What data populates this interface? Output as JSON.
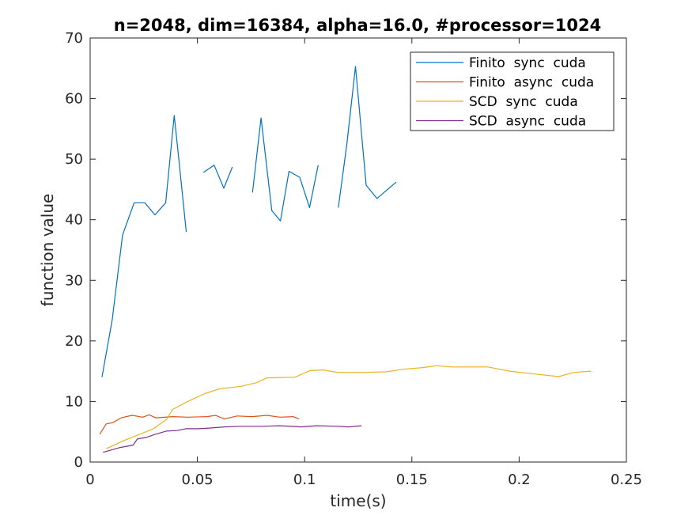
{
  "chart_data": {
    "type": "line",
    "title": "n=2048, dim=16384, alpha=16.0, #processor=1024",
    "xlabel": "time(s)",
    "ylabel": "function value",
    "xlim": [
      0,
      0.25
    ],
    "ylim": [
      0,
      70
    ],
    "xticks": [
      0,
      0.05,
      0.1,
      0.15,
      0.2,
      0.25
    ],
    "xtick_labels": [
      "0",
      "0.05",
      "0.1",
      "0.15",
      "0.2",
      "0.25"
    ],
    "yticks": [
      0,
      10,
      20,
      30,
      40,
      50,
      60,
      70
    ],
    "ytick_labels": [
      "0",
      "10",
      "20",
      "30",
      "40",
      "50",
      "60",
      "70"
    ],
    "grid": false,
    "legend_position": "top-right",
    "series": [
      {
        "name": "Finito  sync  cuda",
        "color": "#0072bd",
        "segments": [
          [
            [
              0.0055,
              14.0
            ],
            [
              0.0103,
              23.5
            ],
            [
              0.0151,
              37.5
            ],
            [
              0.0205,
              42.8
            ],
            [
              0.0255,
              42.8
            ],
            [
              0.0302,
              40.8
            ],
            [
              0.0352,
              42.8
            ],
            [
              0.0392,
              57.2
            ],
            [
              0.0412,
              50.5
            ],
            [
              0.0448,
              38.0
            ]
          ],
          [
            [
              0.0528,
              47.8
            ],
            [
              0.0578,
              49.0
            ],
            [
              0.0623,
              45.2
            ],
            [
              0.0663,
              48.7
            ]
          ],
          [
            [
              0.0757,
              44.5
            ],
            [
              0.0797,
              56.8
            ],
            [
              0.0847,
              41.5
            ],
            [
              0.0887,
              39.8
            ],
            [
              0.0927,
              48.0
            ],
            [
              0.0977,
              47.0
            ],
            [
              0.1023,
              42.0
            ],
            [
              0.1063,
              49.0
            ]
          ],
          [
            [
              0.1157,
              42.0
            ],
            [
              0.1197,
              52.5
            ],
            [
              0.1237,
              65.3
            ],
            [
              0.1287,
              45.7
            ],
            [
              0.1337,
              43.5
            ],
            [
              0.1427,
              46.2
            ]
          ]
        ]
      },
      {
        "name": "Finito  async  cuda",
        "color": "#d95319",
        "segments": [
          [
            [
              0.0045,
              4.6
            ],
            [
              0.0075,
              6.3
            ],
            [
              0.0105,
              6.5
            ],
            [
              0.0145,
              7.3
            ],
            [
              0.0195,
              7.7
            ],
            [
              0.0245,
              7.4
            ],
            [
              0.0275,
              7.8
            ],
            [
              0.0305,
              7.3
            ],
            [
              0.0385,
              7.5
            ],
            [
              0.0455,
              7.4
            ],
            [
              0.0545,
              7.5
            ],
            [
              0.0585,
              7.7
            ],
            [
              0.0625,
              7.1
            ],
            [
              0.0685,
              7.6
            ],
            [
              0.0755,
              7.5
            ],
            [
              0.0825,
              7.7
            ],
            [
              0.0885,
              7.4
            ],
            [
              0.0945,
              7.5
            ],
            [
              0.0975,
              7.1
            ]
          ]
        ]
      },
      {
        "name": "SCD  sync  cuda",
        "color": "#edb120",
        "segments": [
          [
            [
              0.0075,
              2.2
            ],
            [
              0.0155,
              3.5
            ],
            [
              0.0225,
              4.5
            ],
            [
              0.0295,
              5.5
            ],
            [
              0.0355,
              7.0
            ],
            [
              0.0385,
              8.7
            ],
            [
              0.0455,
              10.0
            ],
            [
              0.0535,
              11.3
            ],
            [
              0.0605,
              12.1
            ],
            [
              0.0705,
              12.5
            ],
            [
              0.0775,
              13.1
            ],
            [
              0.0825,
              13.9
            ],
            [
              0.0955,
              14.0
            ],
            [
              0.1025,
              15.1
            ],
            [
              0.1085,
              15.2
            ],
            [
              0.1155,
              14.8
            ],
            [
              0.1285,
              14.8
            ],
            [
              0.1385,
              14.9
            ],
            [
              0.1455,
              15.3
            ],
            [
              0.1555,
              15.6
            ],
            [
              0.1615,
              15.9
            ],
            [
              0.1685,
              15.7
            ],
            [
              0.1855,
              15.7
            ],
            [
              0.1955,
              15.0
            ],
            [
              0.2055,
              14.6
            ],
            [
              0.2185,
              14.1
            ],
            [
              0.2255,
              14.8
            ],
            [
              0.2335,
              15.0
            ]
          ]
        ]
      },
      {
        "name": "SCD  async  cuda",
        "color": "#7e2f8e",
        "segments": [
          [
            [
              0.006,
              1.6
            ],
            [
              0.01,
              2.0
            ],
            [
              0.014,
              2.4
            ],
            [
              0.02,
              2.8
            ],
            [
              0.022,
              3.8
            ],
            [
              0.0265,
              4.1
            ],
            [
              0.0305,
              4.6
            ],
            [
              0.0355,
              5.1
            ],
            [
              0.0405,
              5.2
            ],
            [
              0.0445,
              5.5
            ],
            [
              0.0505,
              5.5
            ],
            [
              0.0555,
              5.6
            ],
            [
              0.0625,
              5.8
            ],
            [
              0.0705,
              5.9
            ],
            [
              0.0805,
              5.9
            ],
            [
              0.0885,
              6.0
            ],
            [
              0.0985,
              5.8
            ],
            [
              0.1055,
              6.0
            ],
            [
              0.1155,
              5.9
            ],
            [
              0.1205,
              5.8
            ],
            [
              0.1265,
              6.0
            ]
          ]
        ]
      }
    ]
  }
}
